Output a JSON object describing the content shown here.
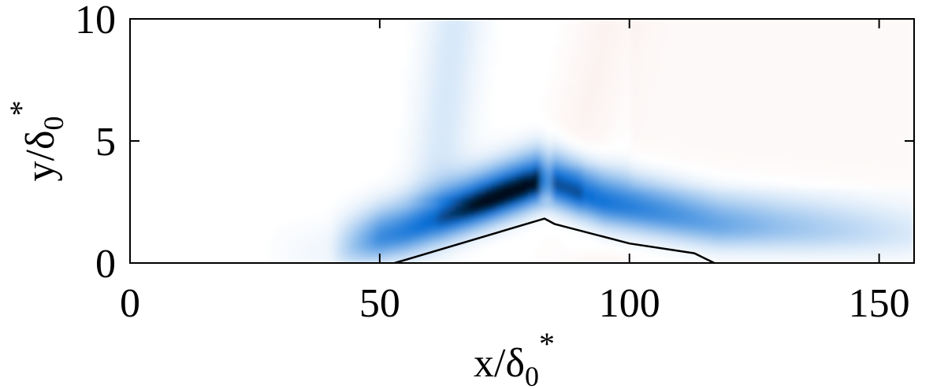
{
  "chart_data": {
    "type": "heatmap",
    "title": "",
    "xlabel": {
      "base": "x/δ",
      "sub": "0",
      "sup": "*"
    },
    "ylabel": {
      "base": "y/δ",
      "sub": "0",
      "sup": "*"
    },
    "xlim": [
      0,
      157
    ],
    "ylim": [
      0,
      10
    ],
    "xticks": [
      0,
      50,
      100,
      150
    ],
    "yticks": [
      0,
      5,
      10
    ],
    "xtick_labels": [
      "0",
      "50",
      "100",
      "150"
    ],
    "ytick_labels": [
      "0",
      "5",
      "10"
    ],
    "grid": false,
    "colormap": {
      "negative": "#0a6fd6",
      "extreme": "#04101e",
      "positive": "#e8b0a4",
      "zero": "#ffffff"
    },
    "contour": {
      "color": "#000000",
      "points": [
        [
          53,
          0
        ],
        [
          83,
          1.82
        ],
        [
          85,
          1.6
        ],
        [
          100,
          0.8
        ],
        [
          113,
          0.4
        ],
        [
          117,
          0
        ]
      ]
    },
    "features": {
      "ridge": [
        [
          38,
          0.4
        ],
        [
          55,
          1.3
        ],
        [
          83,
          3.4
        ],
        [
          95,
          2.5
        ],
        [
          118,
          1.6
        ],
        [
          157,
          1.2
        ]
      ],
      "apex": [
        83,
        4.1
      ]
    }
  }
}
